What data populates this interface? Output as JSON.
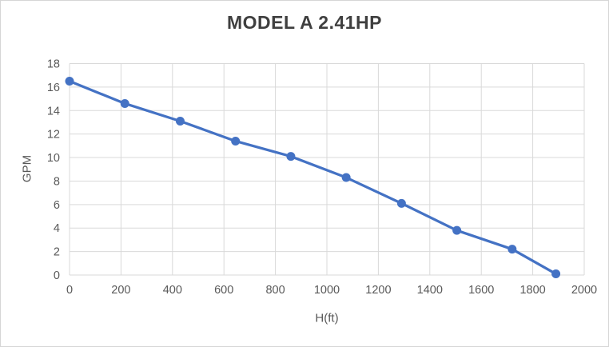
{
  "chart_data": {
    "type": "line",
    "title": "MODEL A 2.41HP",
    "xlabel": "H(ft)",
    "ylabel": "GPM",
    "x": [
      0,
      215,
      430,
      645,
      860,
      1075,
      1290,
      1505,
      1720,
      1890
    ],
    "y": [
      16.5,
      14.6,
      13.1,
      11.4,
      10.1,
      8.3,
      6.1,
      3.8,
      2.2,
      0.1
    ],
    "xlim": [
      0,
      2000
    ],
    "ylim": [
      0,
      18
    ],
    "x_ticks": [
      0,
      200,
      400,
      600,
      800,
      1000,
      1200,
      1400,
      1600,
      1800,
      2000
    ],
    "y_ticks": [
      0,
      2,
      4,
      6,
      8,
      10,
      12,
      14,
      16,
      18
    ],
    "grid": true,
    "legend": false,
    "colors": {
      "line": "#4472C4",
      "marker": "#4472C4",
      "grid": "#d9d9d9",
      "tick_text": "#595959",
      "title_text": "#3f3f3f",
      "frame": "#d6d6d6",
      "background": "#ffffff"
    }
  }
}
